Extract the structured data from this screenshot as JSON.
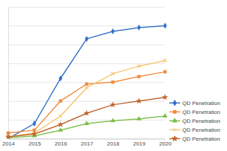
{
  "chart_data": {
    "type": "line",
    "x": [
      2014,
      2015,
      2016,
      2017,
      2018,
      2019,
      2020
    ],
    "xlim": [
      2014,
      2020
    ],
    "xticks": [
      2014,
      2015,
      2016,
      2017,
      2018,
      2019,
      2020
    ],
    "ylim": [
      0,
      7
    ],
    "yticks": [
      0,
      1,
      2,
      3,
      4,
      5,
      6,
      7
    ],
    "grid": true,
    "tick_labels": "x",
    "legend": "right",
    "series": [
      {
        "name": "QD Penetration",
        "color": "#2e6fc7",
        "marker": "diamond",
        "values": [
          0,
          0.8,
          3.2,
          5.3,
          5.7,
          5.9,
          6.0
        ]
      },
      {
        "name": "QD Penetration",
        "color": "#f28a3c",
        "marker": "square",
        "values": [
          0.3,
          0.45,
          2.0,
          2.9,
          3.0,
          3.3,
          3.55
        ]
      },
      {
        "name": "QD Penetration",
        "color": "#7cbf4a",
        "marker": "triangle",
        "values": [
          0.05,
          0.15,
          0.45,
          0.8,
          0.95,
          1.05,
          1.2
        ]
      },
      {
        "name": "QD Penetration",
        "color": "#f6c46e",
        "marker": "x",
        "values": [
          0.1,
          0.3,
          1.2,
          2.7,
          3.45,
          3.85,
          4.15
        ]
      },
      {
        "name": "QD Penetration",
        "color": "#c0622a",
        "marker": "star",
        "values": [
          0.1,
          0.25,
          0.75,
          1.35,
          1.8,
          2.0,
          2.2
        ]
      }
    ]
  }
}
